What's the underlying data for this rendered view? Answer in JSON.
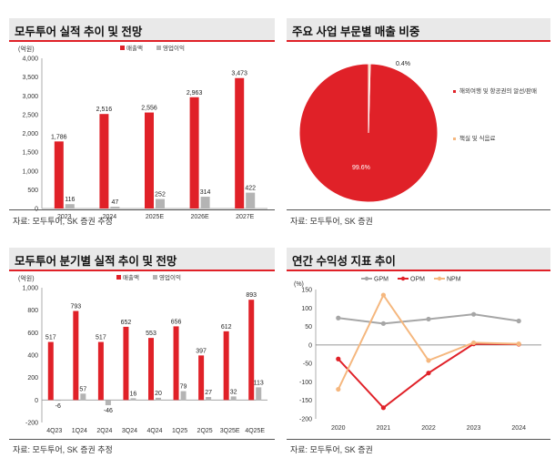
{
  "panels": {
    "p1": {
      "title": "모두투어 실적 추이 및 전망",
      "source": "자료: 모두투어, SK 증권 추정"
    },
    "p2": {
      "title": "주요 사업 부문별 매출 비중",
      "source": "자료: 모두투어, SK 증권"
    },
    "p3": {
      "title": "모두투어 분기별 실적 추이 및 전망",
      "source": "자료: 모두투어, SK 증권 추정"
    },
    "p4": {
      "title": "연간 수익성 지표 추이",
      "source": "자료: 모두투어, SK 증권"
    }
  },
  "colors": {
    "red": "#e02128",
    "gray": "#b4b4b4",
    "orange": "#f5b77e",
    "gpm": "#a6a6a6"
  },
  "chart_data": [
    {
      "type": "bar",
      "unit": "(억원)",
      "categories": [
        "2023",
        "2024",
        "2025E",
        "2026E",
        "2027E"
      ],
      "series": [
        {
          "name": "매출액",
          "values": [
            1786,
            2516,
            2556,
            2963,
            3473
          ],
          "labels": [
            "1,786",
            "2,516",
            "2,556",
            "2,963",
            "3,473"
          ]
        },
        {
          "name": "영업이익",
          "values": [
            116,
            47,
            252,
            314,
            422
          ],
          "labels": [
            "116",
            "47",
            "252",
            "314",
            "422"
          ]
        }
      ],
      "ylim": [
        0,
        4000
      ],
      "yticks": [
        "0",
        "500",
        "1,000",
        "1,500",
        "2,000",
        "2,500",
        "3,000",
        "3,500",
        "4,000"
      ],
      "ytick_values": [
        0,
        500,
        1000,
        1500,
        2000,
        2500,
        3000,
        3500,
        4000
      ],
      "legend": "top"
    },
    {
      "type": "pie",
      "slices": [
        {
          "name": "해외여행 및 항공권의 알선/판매",
          "value": 99.6,
          "label": "99.6%"
        },
        {
          "name": "책실 및 식음료",
          "value": 0.4,
          "label": "0.4%"
        }
      ],
      "legend": "right"
    },
    {
      "type": "bar",
      "unit": "(억원)",
      "categories": [
        "4Q23",
        "1Q24",
        "2Q24",
        "3Q24",
        "4Q24",
        "1Q25",
        "2Q25",
        "3Q25E",
        "4Q25E"
      ],
      "series": [
        {
          "name": "매출액",
          "values": [
            517,
            793,
            517,
            652,
            553,
            656,
            397,
            612,
            893
          ],
          "labels": [
            "517",
            "793",
            "517",
            "652",
            "553",
            "656",
            "397",
            "612",
            "893"
          ]
        },
        {
          "name": "영업이익",
          "values": [
            -6,
            57,
            -46,
            16,
            20,
            79,
            27,
            32,
            113
          ],
          "labels": [
            "-6",
            "57",
            "-46",
            "16",
            "20",
            "79",
            "27",
            "32",
            "113"
          ]
        }
      ],
      "ylim": [
        -200,
        1000
      ],
      "yticks": [
        "-200",
        "0",
        "200",
        "400",
        "600",
        "800",
        "1,000"
      ],
      "ytick_values": [
        -200,
        0,
        200,
        400,
        600,
        800,
        1000
      ],
      "legend": "top"
    },
    {
      "type": "line",
      "unit": "(%)",
      "x": [
        "2020",
        "2021",
        "2022",
        "2023",
        "2024"
      ],
      "series": [
        {
          "name": "GPM",
          "values": [
            73,
            58,
            70,
            83,
            65
          ]
        },
        {
          "name": "OPM",
          "values": [
            -38,
            -170,
            -76,
            3,
            2
          ]
        },
        {
          "name": "NPM",
          "values": [
            -120,
            135,
            -42,
            6,
            3
          ]
        }
      ],
      "ylim": [
        -200,
        150
      ],
      "yticks": [
        "-200",
        "-150",
        "-100",
        "-50",
        "0",
        "50",
        "100",
        "150"
      ],
      "ytick_values": [
        -200,
        -150,
        -100,
        -50,
        0,
        50,
        100,
        150
      ],
      "legend": "top"
    }
  ]
}
